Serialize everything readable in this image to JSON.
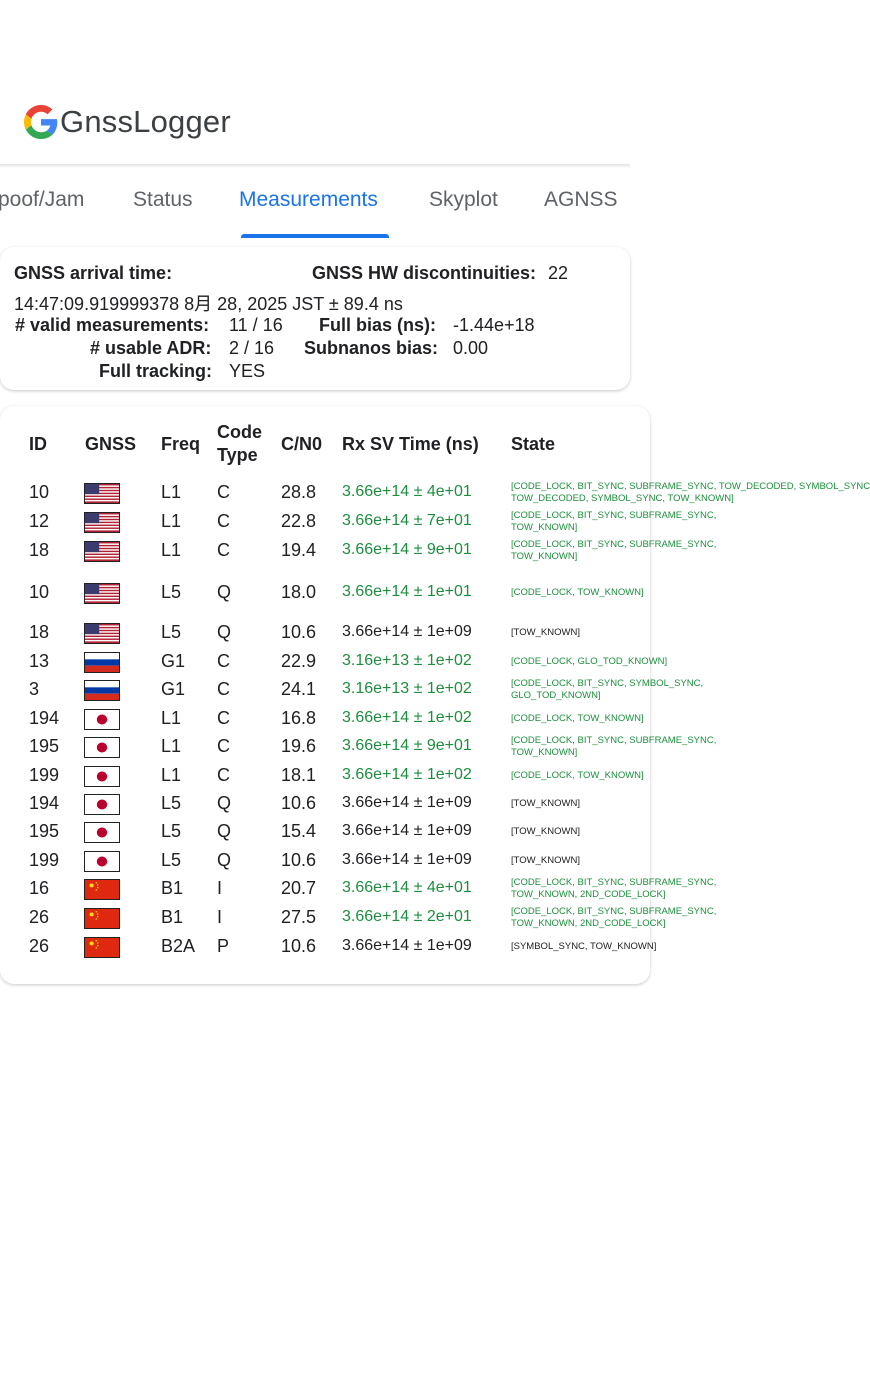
{
  "app": {
    "title": "GnssLogger"
  },
  "tabs": [
    {
      "label": "poof/Jam"
    },
    {
      "label": "Status"
    },
    {
      "label": "Measurements"
    },
    {
      "label": "Skyplot"
    },
    {
      "label": "AGNSS"
    }
  ],
  "active_tab": "Measurements",
  "summary": {
    "arrival_label": "GNSS arrival time:",
    "arrival_value": "14:47:09.919999378 8月 28, 2025 JST ± 89.4 ns",
    "hw_disc_label": "GNSS HW discontinuities:",
    "hw_disc_value": "22",
    "valid_label": "# valid measurements:",
    "valid_value": "11 / 16",
    "full_bias_label": "Full bias (ns):",
    "full_bias_value": "-1.44e+18",
    "usable_adr_label": "# usable ADR:",
    "usable_adr_value": "2 / 16",
    "subnanos_label": "Subnanos bias:",
    "subnanos_value": "0.00",
    "tracking_label": "Full tracking:",
    "tracking_value": "YES"
  },
  "table": {
    "headers": {
      "id": "ID",
      "gnss": "GNSS",
      "freq": "Freq",
      "code_type": "Code Type",
      "cn0": "C/N0",
      "rx_sv_time": "Rx SV Time (ns)",
      "state": "State"
    },
    "rows": [
      {
        "id": "10",
        "gnss": "us-flag-icon",
        "freq": "L1",
        "code": "C",
        "cn0": "28.8",
        "rx": "3.66e+14 ± 4e+01",
        "state": "[CODE_LOCK, BIT_SYNC, SUBFRAME_SYNC, TOW_DECODED, SYMBOL_SYNC",
        "state2": "TOW_DECODED, SYMBOL_SYNC, TOW_KNOWN]",
        "valid": true
      },
      {
        "id": "12",
        "gnss": "us-flag-icon",
        "freq": "L1",
        "code": "C",
        "cn0": "22.8",
        "rx": "3.66e+14 ± 7e+01",
        "state": "[CODE_LOCK, BIT_SYNC, SUBFRAME_SYNC,",
        "state2": "TOW_KNOWN]",
        "valid": true
      },
      {
        "id": "18",
        "gnss": "us-flag-icon",
        "freq": "L1",
        "code": "C",
        "cn0": "19.4",
        "rx": "3.66e+14 ± 9e+01",
        "state": "[CODE_LOCK, BIT_SYNC, SUBFRAME_SYNC,",
        "state2": "TOW_KNOWN]",
        "valid": true
      },
      {
        "id": "10",
        "gnss": "us-flag-icon",
        "freq": "L5",
        "code": "Q",
        "cn0": "18.0",
        "rx": "3.66e+14 ± 1e+01",
        "state": "[CODE_LOCK, TOW_KNOWN]",
        "state2": "",
        "valid": true
      },
      {
        "id": "18",
        "gnss": "us-flag-icon",
        "freq": "L5",
        "code": "Q",
        "cn0": "10.6",
        "rx": "3.66e+14 ± 1e+09",
        "state": "[TOW_KNOWN]",
        "state2": "",
        "valid": false
      },
      {
        "id": "13",
        "gnss": "ru-flag-icon",
        "freq": "G1",
        "code": "C",
        "cn0": "22.9",
        "rx": "3.16e+13 ± 1e+02",
        "state": "[CODE_LOCK, GLO_TOD_KNOWN]",
        "state2": "",
        "valid": true
      },
      {
        "id": "3",
        "gnss": "ru-flag-icon",
        "freq": "G1",
        "code": "C",
        "cn0": "24.1",
        "rx": "3.16e+13 ± 1e+02",
        "state": "[CODE_LOCK, BIT_SYNC, SYMBOL_SYNC,",
        "state2": "GLO_TOD_KNOWN]",
        "valid": true
      },
      {
        "id": "194",
        "gnss": "jp-flag-icon",
        "freq": "L1",
        "code": "C",
        "cn0": "16.8",
        "rx": "3.66e+14 ± 1e+02",
        "state": "[CODE_LOCK, TOW_KNOWN]",
        "state2": "",
        "valid": true
      },
      {
        "id": "195",
        "gnss": "jp-flag-icon",
        "freq": "L1",
        "code": "C",
        "cn0": "19.6",
        "rx": "3.66e+14 ± 9e+01",
        "state": "[CODE_LOCK, BIT_SYNC, SUBFRAME_SYNC,",
        "state2": "TOW_KNOWN]",
        "valid": true
      },
      {
        "id": "199",
        "gnss": "jp-flag-icon",
        "freq": "L1",
        "code": "C",
        "cn0": "18.1",
        "rx": "3.66e+14 ± 1e+02",
        "state": "[CODE_LOCK, TOW_KNOWN]",
        "state2": "",
        "valid": true
      },
      {
        "id": "194",
        "gnss": "jp-flag-icon",
        "freq": "L5",
        "code": "Q",
        "cn0": "10.6",
        "rx": "3.66e+14 ± 1e+09",
        "state": "[TOW_KNOWN]",
        "state2": "",
        "valid": false
      },
      {
        "id": "195",
        "gnss": "jp-flag-icon",
        "freq": "L5",
        "code": "Q",
        "cn0": "15.4",
        "rx": "3.66e+14 ± 1e+09",
        "state": "[TOW_KNOWN]",
        "state2": "",
        "valid": false
      },
      {
        "id": "199",
        "gnss": "jp-flag-icon",
        "freq": "L5",
        "code": "Q",
        "cn0": "10.6",
        "rx": "3.66e+14 ± 1e+09",
        "state": "[TOW_KNOWN]",
        "state2": "",
        "valid": false
      },
      {
        "id": "16",
        "gnss": "cn-flag-icon",
        "freq": "B1",
        "code": "I",
        "cn0": "20.7",
        "rx": "3.66e+14 ± 4e+01",
        "state": "[CODE_LOCK, BIT_SYNC, SUBFRAME_SYNC,",
        "state2": "TOW_KNOWN, 2ND_CODE_LOCK]",
        "valid": true
      },
      {
        "id": "26",
        "gnss": "cn-flag-icon",
        "freq": "B1",
        "code": "I",
        "cn0": "27.5",
        "rx": "3.66e+14 ± 2e+01",
        "state": "[CODE_LOCK, BIT_SYNC, SUBFRAME_SYNC,",
        "state2": "TOW_KNOWN, 2ND_CODE_LOCK]",
        "valid": true
      },
      {
        "id": "26",
        "gnss": "cn-flag-icon",
        "freq": "B2A",
        "code": "P",
        "cn0": "10.6",
        "rx": "3.66e+14 ± 1e+09",
        "state": "[SYMBOL_SYNC, TOW_KNOWN]",
        "state2": "",
        "valid": false
      }
    ]
  },
  "colors": {
    "accent": "#1a73e8",
    "valid_green": "#1e8e3e",
    "text": "#202124"
  }
}
